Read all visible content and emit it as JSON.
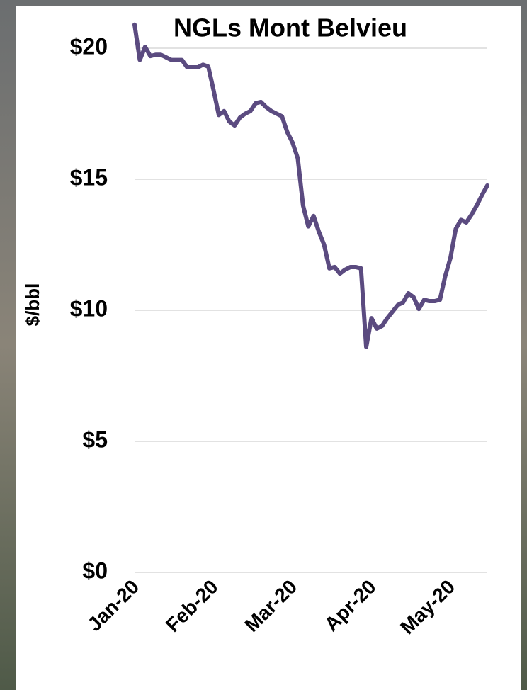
{
  "chart_data": {
    "type": "line",
    "title": "NGLs Mont Belvieu",
    "y_label": "$/bbl",
    "categories": [
      "Jan-20",
      null,
      null,
      null,
      null,
      null,
      null,
      null,
      null,
      null,
      null,
      null,
      null,
      null,
      null,
      "Feb-20",
      null,
      null,
      null,
      null,
      null,
      null,
      null,
      null,
      null,
      null,
      null,
      null,
      null,
      null,
      "Mar-20",
      null,
      null,
      null,
      null,
      null,
      null,
      null,
      null,
      null,
      null,
      null,
      null,
      null,
      null,
      "Apr-20",
      null,
      null,
      null,
      null,
      null,
      null,
      null,
      null,
      null,
      null,
      null,
      null,
      null,
      null,
      "May-20",
      null,
      null,
      null,
      null,
      null,
      null,
      null
    ],
    "series": [
      {
        "name": "NGLs Mont Belvieu",
        "color": "#5b4b80",
        "values": [
          20.9,
          19.55,
          20.05,
          19.7,
          19.75,
          19.75,
          19.65,
          19.55,
          19.55,
          19.55,
          19.27,
          19.27,
          19.27,
          19.37,
          19.3,
          18.4,
          17.45,
          17.6,
          17.2,
          17.05,
          17.35,
          17.5,
          17.6,
          17.9,
          17.95,
          17.75,
          17.6,
          17.5,
          17.4,
          16.8,
          16.4,
          15.8,
          14.0,
          13.2,
          13.6,
          13.0,
          12.5,
          11.6,
          11.65,
          11.4,
          11.55,
          11.65,
          11.65,
          11.6,
          8.6,
          9.7,
          9.3,
          9.4,
          9.7,
          9.95,
          10.2,
          10.3,
          10.65,
          10.5,
          10.05,
          10.4,
          10.35,
          10.35,
          10.4,
          11.3,
          12.0,
          13.1,
          13.45,
          13.35,
          13.65,
          14.0,
          14.4,
          14.76
        ]
      }
    ],
    "ylim": [
      0,
      21
    ],
    "yticks": [
      {
        "value": 0,
        "label": "$0"
      },
      {
        "value": 5,
        "label": "$5"
      },
      {
        "value": 10,
        "label": "$10"
      },
      {
        "value": 15,
        "label": "$15"
      },
      {
        "value": 20,
        "label": "$20"
      }
    ],
    "grid": true
  }
}
